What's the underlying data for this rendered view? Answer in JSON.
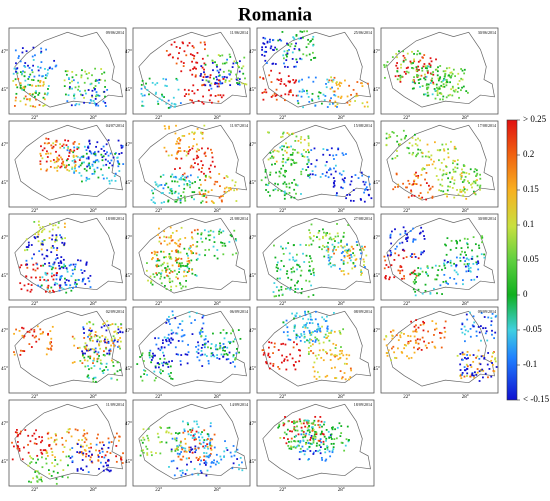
{
  "title": "Romania",
  "panels": [
    {
      "date": "09/06/2014"
    },
    {
      "date": "11/06/2014"
    },
    {
      "date": "25/06/2014"
    },
    {
      "date": "30/06/2014"
    },
    {
      "date": "04/07/2014"
    },
    {
      "date": "11/07/2014"
    },
    {
      "date": "15/08/2014"
    },
    {
      "date": "17/08/2014"
    },
    {
      "date": "18/08/2014"
    },
    {
      "date": "21/08/2014"
    },
    {
      "date": "27/08/2014"
    },
    {
      "date": "30/08/2014"
    },
    {
      "date": "02/09/2014"
    },
    {
      "date": "06/09/2014"
    },
    {
      "date": "08/09/2014"
    },
    {
      "date": "09/09/2014"
    },
    {
      "date": "11/09/2014"
    },
    {
      "date": "14/09/2014"
    },
    {
      "date": "18/09/2014"
    }
  ],
  "axes": {
    "lat": [
      "47°",
      "45°"
    ],
    "lon": [
      "22°",
      "28°"
    ]
  },
  "colorbar": {
    "range": [
      -0.15,
      0.25
    ],
    "ticks": [
      {
        "value": 0.25,
        "label": "> 0.25"
      },
      0.2,
      0.15,
      0.1,
      0.05,
      0,
      -0.05,
      -0.1,
      {
        "value": -0.15,
        "label": "< -0.15"
      }
    ]
  }
}
